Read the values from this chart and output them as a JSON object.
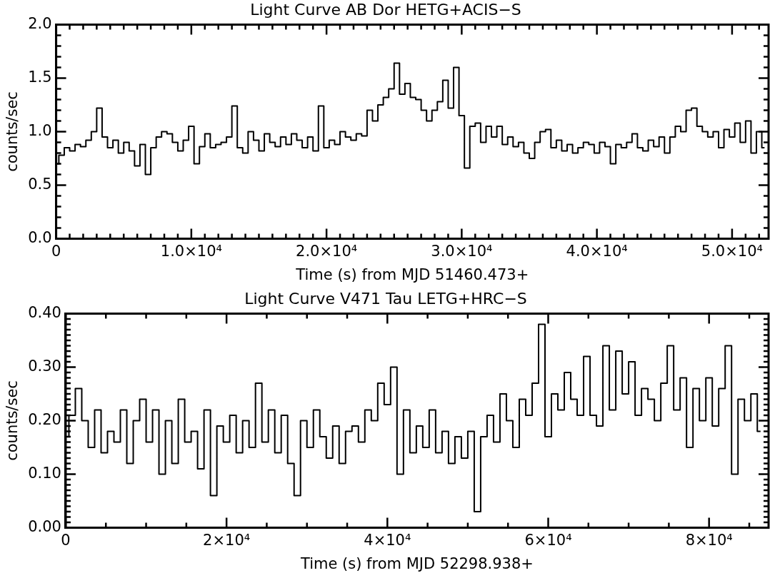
{
  "chart_data": [
    {
      "type": "step",
      "title": "Light Curve AB Dor HETG+ACIS−S",
      "xlabel": "Time (s) from MJD 51460.473+",
      "ylabel": "counts/sec",
      "color": "#000000",
      "marker": "none",
      "x": [
        0,
        400,
        800,
        1200,
        1600,
        2000,
        2400,
        2800,
        3200,
        3600,
        4000,
        4400,
        4800,
        5200,
        5600,
        6000,
        6400,
        6800,
        7200,
        7600,
        8000,
        8400,
        8800,
        9200,
        9600,
        10000,
        10400,
        10800,
        11200,
        11600,
        12000,
        12400,
        12800,
        13200,
        13600,
        14000,
        14400,
        14800,
        15200,
        15600,
        16000,
        16400,
        16800,
        17200,
        17600,
        18000,
        18400,
        18800,
        19200,
        19600,
        20000,
        20400,
        20800,
        21200,
        21600,
        22000,
        22400,
        22800,
        23200,
        23600,
        24000,
        24400,
        24800,
        25200,
        25600,
        26000,
        26400,
        26800,
        27200,
        27600,
        28000,
        28400,
        28800,
        29200,
        29600,
        30000,
        30400,
        30800,
        31200,
        31600,
        32000,
        32400,
        32800,
        33200,
        33600,
        34000,
        34400,
        34800,
        35200,
        35600,
        36000,
        36400,
        36800,
        37200,
        37600,
        38000,
        38400,
        38800,
        39200,
        39600,
        40000,
        40400,
        40800,
        41200,
        41600,
        42000,
        42400,
        42800,
        43200,
        43600,
        44000,
        44400,
        44800,
        45200,
        45600,
        46000,
        46400,
        46800,
        47200,
        47600,
        48000,
        48400,
        48800,
        49200,
        49600,
        50000,
        50400,
        50800,
        51200,
        51600,
        52000,
        52400
      ],
      "values": [
        0.7,
        0.78,
        0.85,
        0.82,
        0.88,
        0.86,
        0.92,
        1.0,
        1.22,
        0.95,
        0.85,
        0.92,
        0.8,
        0.9,
        0.82,
        0.68,
        0.88,
        0.6,
        0.85,
        0.95,
        1.0,
        0.98,
        0.9,
        0.82,
        0.92,
        1.05,
        0.7,
        0.86,
        0.98,
        0.85,
        0.88,
        0.9,
        0.95,
        1.24,
        0.85,
        0.8,
        1.0,
        0.92,
        0.82,
        0.98,
        0.9,
        0.86,
        0.95,
        0.88,
        0.98,
        0.92,
        0.85,
        0.95,
        0.82,
        1.24,
        0.85,
        0.92,
        0.88,
        1.0,
        0.95,
        0.92,
        0.98,
        0.96,
        1.2,
        1.1,
        1.25,
        1.32,
        1.4,
        1.64,
        1.35,
        1.45,
        1.32,
        1.3,
        1.2,
        1.1,
        1.2,
        1.28,
        1.48,
        1.22,
        1.6,
        1.15,
        0.66,
        1.05,
        1.08,
        0.9,
        1.05,
        0.95,
        1.05,
        0.88,
        0.95,
        0.86,
        0.9,
        0.8,
        0.75,
        0.9,
        1.0,
        1.02,
        0.85,
        0.92,
        0.82,
        0.88,
        0.8,
        0.85,
        0.9,
        0.88,
        0.8,
        0.9,
        0.86,
        0.7,
        0.88,
        0.85,
        0.9,
        0.98,
        0.85,
        0.82,
        0.92,
        0.86,
        0.95,
        0.8,
        0.95,
        1.05,
        1.0,
        1.2,
        1.22,
        1.05,
        1.0,
        0.95,
        1.0,
        0.85,
        1.02,
        0.95,
        1.08,
        0.9,
        1.1,
        0.8,
        1.0,
        0.85
      ],
      "xlim": [
        0,
        52700
      ],
      "xticks": [
        {
          "value": 0,
          "label": "0"
        },
        {
          "value": 1000,
          "label": null
        },
        {
          "value": 2000,
          "label": null
        },
        {
          "value": 3000,
          "label": null
        },
        {
          "value": 4000,
          "label": null
        },
        {
          "value": 5000,
          "label": null
        },
        {
          "value": 6000,
          "label": null
        },
        {
          "value": 7000,
          "label": null
        },
        {
          "value": 8000,
          "label": null
        },
        {
          "value": 9000,
          "label": null
        },
        {
          "value": 10000,
          "label": "1.0×10⁴"
        },
        {
          "value": 11000,
          "label": null
        },
        {
          "value": 12000,
          "label": null
        },
        {
          "value": 13000,
          "label": null
        },
        {
          "value": 14000,
          "label": null
        },
        {
          "value": 15000,
          "label": null
        },
        {
          "value": 16000,
          "label": null
        },
        {
          "value": 17000,
          "label": null
        },
        {
          "value": 18000,
          "label": null
        },
        {
          "value": 19000,
          "label": null
        },
        {
          "value": 20000,
          "label": "2.0×10⁴"
        },
        {
          "value": 21000,
          "label": null
        },
        {
          "value": 22000,
          "label": null
        },
        {
          "value": 23000,
          "label": null
        },
        {
          "value": 24000,
          "label": null
        },
        {
          "value": 25000,
          "label": null
        },
        {
          "value": 26000,
          "label": null
        },
        {
          "value": 27000,
          "label": null
        },
        {
          "value": 28000,
          "label": null
        },
        {
          "value": 29000,
          "label": null
        },
        {
          "value": 30000,
          "label": "3.0×10⁴"
        },
        {
          "value": 31000,
          "label": null
        },
        {
          "value": 32000,
          "label": null
        },
        {
          "value": 33000,
          "label": null
        },
        {
          "value": 34000,
          "label": null
        },
        {
          "value": 35000,
          "label": null
        },
        {
          "value": 36000,
          "label": null
        },
        {
          "value": 37000,
          "label": null
        },
        {
          "value": 38000,
          "label": null
        },
        {
          "value": 39000,
          "label": null
        },
        {
          "value": 40000,
          "label": "4.0×10⁴"
        },
        {
          "value": 41000,
          "label": null
        },
        {
          "value": 42000,
          "label": null
        },
        {
          "value": 43000,
          "label": null
        },
        {
          "value": 44000,
          "label": null
        },
        {
          "value": 45000,
          "label": null
        },
        {
          "value": 46000,
          "label": null
        },
        {
          "value": 47000,
          "label": null
        },
        {
          "value": 48000,
          "label": null
        },
        {
          "value": 49000,
          "label": null
        },
        {
          "value": 50000,
          "label": "5.0×10⁴"
        },
        {
          "value": 51000,
          "label": null
        },
        {
          "value": 52000,
          "label": null
        }
      ],
      "ylim": [
        0,
        2.0
      ],
      "yticks": [
        {
          "value": 0,
          "label": "0.0"
        },
        {
          "value": 0.1,
          "label": null
        },
        {
          "value": 0.2,
          "label": null
        },
        {
          "value": 0.3,
          "label": null
        },
        {
          "value": 0.4,
          "label": null
        },
        {
          "value": 0.5,
          "label": "0.5"
        },
        {
          "value": 0.6,
          "label": null
        },
        {
          "value": 0.7,
          "label": null
        },
        {
          "value": 0.8,
          "label": null
        },
        {
          "value": 0.9,
          "label": null
        },
        {
          "value": 1.0,
          "label": "1.0"
        },
        {
          "value": 1.1,
          "label": null
        },
        {
          "value": 1.2,
          "label": null
        },
        {
          "value": 1.3,
          "label": null
        },
        {
          "value": 1.4,
          "label": null
        },
        {
          "value": 1.5,
          "label": "1.5"
        },
        {
          "value": 1.6,
          "label": null
        },
        {
          "value": 1.7,
          "label": null
        },
        {
          "value": 1.8,
          "label": null
        },
        {
          "value": 1.9,
          "label": null
        },
        {
          "value": 2.0,
          "label": "2.0"
        }
      ]
    },
    {
      "type": "step",
      "title": "Light Curve V471 Tau LETG+HRC−S",
      "xlabel": "Time (s) from MJD 52298.938+",
      "ylabel": "counts/sec",
      "color": "#000000",
      "marker": "none",
      "x": [
        0,
        800,
        1600,
        2400,
        3200,
        4000,
        4800,
        5600,
        6400,
        7200,
        8000,
        8800,
        9600,
        10400,
        11200,
        12000,
        12800,
        13600,
        14400,
        15200,
        16000,
        16800,
        17600,
        18400,
        19200,
        20000,
        20800,
        21600,
        22400,
        23200,
        24000,
        24800,
        25600,
        26400,
        27200,
        28000,
        28800,
        29600,
        30400,
        31200,
        32000,
        32800,
        33600,
        34400,
        35200,
        36000,
        36800,
        37600,
        38400,
        39200,
        40000,
        40800,
        41600,
        42400,
        43200,
        44000,
        44800,
        45600,
        46400,
        47200,
        48000,
        48800,
        49600,
        50400,
        51200,
        52000,
        52800,
        53600,
        54400,
        55200,
        56000,
        56800,
        57600,
        58400,
        59200,
        60000,
        60800,
        61600,
        62400,
        63200,
        64000,
        64800,
        65600,
        66400,
        67200,
        68000,
        68800,
        69600,
        70400,
        71200,
        72000,
        72800,
        73600,
        74400,
        75200,
        76000,
        76800,
        77600,
        78400,
        79200,
        80000,
        80800,
        81600,
        82400,
        83200,
        84000,
        84800,
        85600,
        86400
      ],
      "values": [
        0.17,
        0.21,
        0.26,
        0.2,
        0.15,
        0.22,
        0.14,
        0.18,
        0.16,
        0.22,
        0.12,
        0.2,
        0.24,
        0.16,
        0.22,
        0.1,
        0.2,
        0.12,
        0.24,
        0.16,
        0.18,
        0.11,
        0.22,
        0.06,
        0.19,
        0.16,
        0.21,
        0.14,
        0.2,
        0.15,
        0.27,
        0.16,
        0.22,
        0.14,
        0.21,
        0.12,
        0.06,
        0.2,
        0.15,
        0.22,
        0.17,
        0.13,
        0.19,
        0.12,
        0.18,
        0.19,
        0.16,
        0.22,
        0.2,
        0.27,
        0.23,
        0.3,
        0.1,
        0.22,
        0.14,
        0.19,
        0.15,
        0.22,
        0.14,
        0.18,
        0.12,
        0.17,
        0.13,
        0.18,
        0.03,
        0.17,
        0.21,
        0.16,
        0.25,
        0.2,
        0.15,
        0.24,
        0.21,
        0.27,
        0.38,
        0.17,
        0.25,
        0.22,
        0.29,
        0.24,
        0.21,
        0.32,
        0.21,
        0.19,
        0.34,
        0.22,
        0.33,
        0.25,
        0.31,
        0.21,
        0.26,
        0.24,
        0.2,
        0.27,
        0.34,
        0.22,
        0.28,
        0.15,
        0.26,
        0.2,
        0.28,
        0.19,
        0.26,
        0.34,
        0.1,
        0.24,
        0.2,
        0.25,
        0.18
      ],
      "xlim": [
        0,
        87400
      ],
      "xticks": [
        {
          "value": 0,
          "label": "0"
        },
        {
          "value": 5000,
          "label": null
        },
        {
          "value": 10000,
          "label": null
        },
        {
          "value": 15000,
          "label": null
        },
        {
          "value": 20000,
          "label": "2×10⁴"
        },
        {
          "value": 25000,
          "label": null
        },
        {
          "value": 30000,
          "label": null
        },
        {
          "value": 35000,
          "label": null
        },
        {
          "value": 40000,
          "label": "4×10⁴"
        },
        {
          "value": 45000,
          "label": null
        },
        {
          "value": 50000,
          "label": null
        },
        {
          "value": 55000,
          "label": null
        },
        {
          "value": 60000,
          "label": "6×10⁴"
        },
        {
          "value": 65000,
          "label": null
        },
        {
          "value": 70000,
          "label": null
        },
        {
          "value": 75000,
          "label": null
        },
        {
          "value": 80000,
          "label": "8×10⁴"
        },
        {
          "value": 85000,
          "label": null
        }
      ],
      "ylim": [
        0,
        0.4
      ],
      "yticks": [
        {
          "value": 0,
          "label": "0.00"
        },
        {
          "value": 0.01,
          "label": null
        },
        {
          "value": 0.02,
          "label": null
        },
        {
          "value": 0.03,
          "label": null
        },
        {
          "value": 0.04,
          "label": null
        },
        {
          "value": 0.05,
          "label": null
        },
        {
          "value": 0.06,
          "label": null
        },
        {
          "value": 0.07,
          "label": null
        },
        {
          "value": 0.08,
          "label": null
        },
        {
          "value": 0.09,
          "label": null
        },
        {
          "value": 0.1,
          "label": "0.10"
        },
        {
          "value": 0.11,
          "label": null
        },
        {
          "value": 0.12,
          "label": null
        },
        {
          "value": 0.13,
          "label": null
        },
        {
          "value": 0.14,
          "label": null
        },
        {
          "value": 0.15,
          "label": null
        },
        {
          "value": 0.16,
          "label": null
        },
        {
          "value": 0.17,
          "label": null
        },
        {
          "value": 0.18,
          "label": null
        },
        {
          "value": 0.19,
          "label": null
        },
        {
          "value": 0.2,
          "label": "0.20"
        },
        {
          "value": 0.21,
          "label": null
        },
        {
          "value": 0.22,
          "label": null
        },
        {
          "value": 0.23,
          "label": null
        },
        {
          "value": 0.24,
          "label": null
        },
        {
          "value": 0.25,
          "label": null
        },
        {
          "value": 0.26,
          "label": null
        },
        {
          "value": 0.27,
          "label": null
        },
        {
          "value": 0.28,
          "label": null
        },
        {
          "value": 0.29,
          "label": null
        },
        {
          "value": 0.3,
          "label": "0.30"
        },
        {
          "value": 0.31,
          "label": null
        },
        {
          "value": 0.32,
          "label": null
        },
        {
          "value": 0.33,
          "label": null
        },
        {
          "value": 0.34,
          "label": null
        },
        {
          "value": 0.35,
          "label": null
        },
        {
          "value": 0.36,
          "label": null
        },
        {
          "value": 0.37,
          "label": null
        },
        {
          "value": 0.38,
          "label": null
        },
        {
          "value": 0.39,
          "label": null
        },
        {
          "value": 0.4,
          "label": "0.40"
        }
      ]
    }
  ]
}
